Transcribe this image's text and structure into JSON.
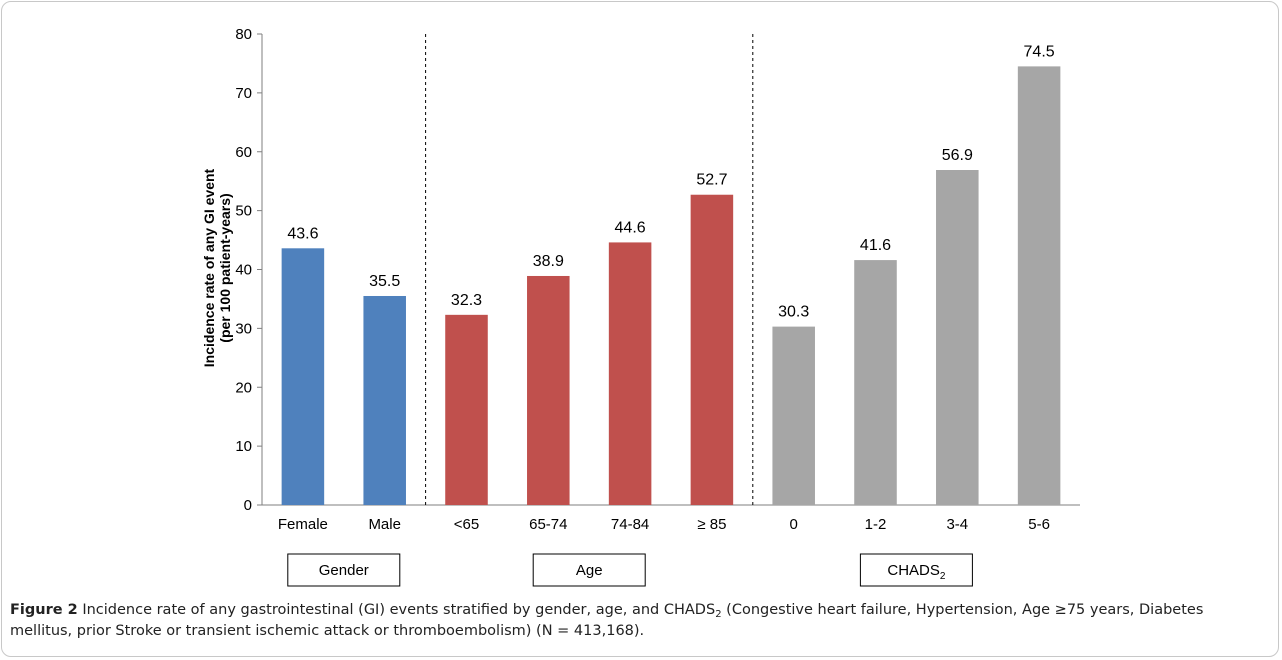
{
  "chart_data": {
    "type": "bar",
    "ylabel_line1": "Incidence rate of any GI event",
    "ylabel_line2": "(per 100 patient-years)",
    "ylim": [
      0,
      80
    ],
    "yticks": [
      "0",
      "10",
      "20",
      "30",
      "40",
      "50",
      "60",
      "70",
      "80"
    ],
    "groups": [
      {
        "label": "Gender",
        "label_sub": "",
        "color": "#4f81bd",
        "categories": [
          "Female",
          "Male"
        ],
        "values": [
          43.6,
          35.5
        ],
        "value_labels": [
          "43.6",
          "35.5"
        ]
      },
      {
        "label": "Age",
        "label_sub": "",
        "color": "#c0504d",
        "categories": [
          "<65",
          "65-74",
          "74-84",
          "≥ 85"
        ],
        "values": [
          32.3,
          38.9,
          44.6,
          52.7
        ],
        "value_labels": [
          "32.3",
          "38.9",
          "44.6",
          "52.7"
        ]
      },
      {
        "label": "CHADS",
        "label_sub": "2",
        "color": "#a6a6a6",
        "categories": [
          "0",
          "1-2",
          "3-4",
          "5-6"
        ],
        "values": [
          30.3,
          41.6,
          56.9,
          74.5
        ],
        "value_labels": [
          "30.3",
          "41.6",
          "56.9",
          "74.5"
        ]
      }
    ],
    "grid": false,
    "group_separators": "dashed"
  },
  "caption": {
    "figure_label": "Figure 2",
    "text_before_sub": "Incidence rate of any gastrointestinal (GI) events stratified by gender, age, and CHADS",
    "sub": "2",
    "text_after_sub": " (Congestive heart failure, Hypertension, Age ≥75 years, Diabetes mellitus, prior Stroke or transient ischemic attack or thromboembolism) (N = 413,168)."
  }
}
